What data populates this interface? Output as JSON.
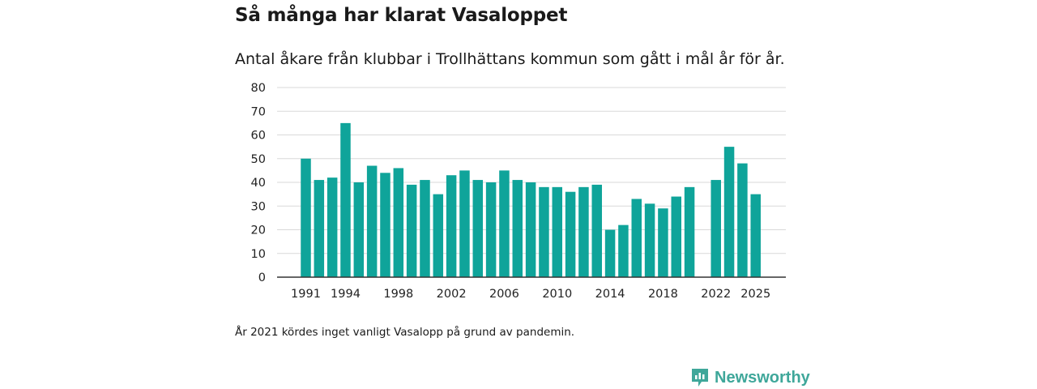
{
  "title": "Så många har klarat Vasaloppet",
  "subtitle": "Antal åkare från klubbar i Trollhättans kommun som gått i mål år för år.",
  "footnote": "År 2021 kördes inget vanligt Vasalopp på grund av pandemin.",
  "brand": "Newsworthy",
  "colors": {
    "bar": "#0fa49a",
    "grid": "#d9d9d9",
    "axis": "#333333",
    "brand": "#3fa79a"
  },
  "chart_data": {
    "type": "bar",
    "title": "Så många har klarat Vasaloppet",
    "xlabel": "",
    "ylabel": "",
    "ylim": [
      0,
      80
    ],
    "yticks": [
      "0",
      "10",
      "20",
      "30",
      "40",
      "50",
      "60",
      "70",
      "80"
    ],
    "xticks": [
      "1991",
      "1994",
      "1998",
      "2002",
      "2006",
      "2010",
      "2014",
      "2018",
      "2022",
      "2025"
    ],
    "categories": [
      1991,
      1992,
      1993,
      1994,
      1995,
      1996,
      1997,
      1998,
      1999,
      2000,
      2001,
      2002,
      2003,
      2004,
      2005,
      2006,
      2007,
      2008,
      2009,
      2010,
      2011,
      2012,
      2013,
      2014,
      2015,
      2016,
      2017,
      2018,
      2019,
      2020,
      2021,
      2022,
      2023,
      2024,
      2025
    ],
    "values": [
      50,
      41,
      42,
      65,
      40,
      47,
      44,
      46,
      39,
      41,
      35,
      43,
      45,
      41,
      40,
      45,
      41,
      40,
      38,
      38,
      36,
      38,
      39,
      20,
      22,
      33,
      31,
      29,
      34,
      38,
      null,
      41,
      55,
      48,
      35
    ],
    "grid": true,
    "legend": "none"
  }
}
